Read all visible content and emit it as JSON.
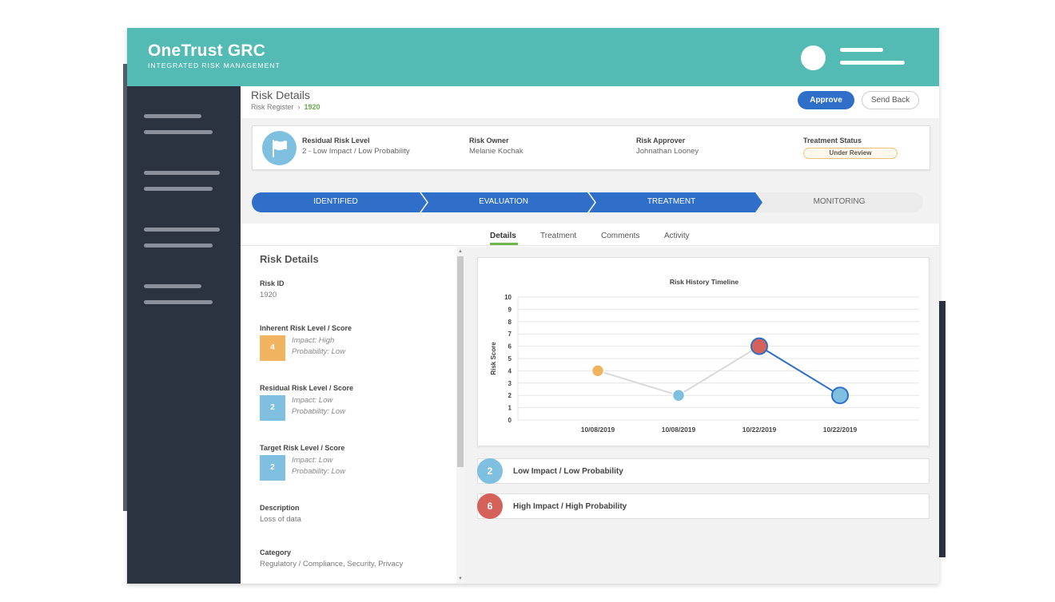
{
  "app": {
    "name": "OneTrust GRC",
    "subtitle": "INTEGRATED RISK MANAGEMENT"
  },
  "header": {
    "title": "Risk Details",
    "breadcrumb": {
      "parent": "Risk Register",
      "separator": "›",
      "current": "1920"
    },
    "approve_label": "Approve",
    "send_back_label": "Send Back"
  },
  "summary": {
    "residual_label": "Residual Risk Level",
    "residual_value": "2 - Low Impact / Low Probability",
    "owner_label": "Risk Owner",
    "owner_value": "Melanie Kochak",
    "approver_label": "Risk Approver",
    "approver_value": "Johnathan Looney",
    "status_label": "Treatment Status",
    "status_value": "Under Review"
  },
  "stages": [
    {
      "label": "IDENTIFIED",
      "state": "complete"
    },
    {
      "label": "EVALUATION",
      "state": "complete"
    },
    {
      "label": "TREATMENT",
      "state": "current"
    },
    {
      "label": "MONITORING",
      "state": "pending"
    }
  ],
  "tabs": [
    {
      "label": "Details",
      "active": true
    },
    {
      "label": "Treatment",
      "active": false
    },
    {
      "label": "Comments",
      "active": false
    },
    {
      "label": "Activity",
      "active": false
    }
  ],
  "details": {
    "title": "Risk Details",
    "risk_id_label": "Risk ID",
    "risk_id_value": "1920",
    "inherent_label": "Inherent Risk Level / Score",
    "inherent_score": "4",
    "inherent_impact": "Impact: High",
    "inherent_probability": "Probability: Low",
    "residual_label": "Residual Risk Level / Score",
    "residual_score": "2",
    "residual_impact": "Impact: Low",
    "residual_probability": "Probability: Low",
    "target_label": "Target Risk Level / Score",
    "target_score": "2",
    "target_impact": "Impact: Low",
    "target_probability": "Probability: Low",
    "description_label": "Description",
    "description_value": "Loss of data",
    "category_label": "Category",
    "category_value": "Regulatory / Compliance, Security, Privacy"
  },
  "colors": {
    "brand": "#54bbb4",
    "primary": "#2f6fca",
    "sidebar": "#2c3340",
    "inherent": "#f0b461",
    "low": "#7fbfe0",
    "high": "#d4625a",
    "tab_active": "#6fb64b"
  },
  "icons": {
    "residual": "flag-icon"
  },
  "chart_data": {
    "type": "line",
    "title": "Risk History Timeline",
    "ylabel": "Risk Score",
    "xlabel": "",
    "ylim": [
      0,
      10
    ],
    "yticks": [
      0,
      1,
      2,
      3,
      4,
      5,
      6,
      7,
      8,
      9,
      10
    ],
    "grid": true,
    "categories": [
      "10/08/2019",
      "10/08/2019",
      "10/22/2019",
      "10/22/2019"
    ],
    "series": [
      {
        "values": [
          4,
          2,
          6,
          2
        ],
        "point_colors": [
          "#f0b461",
          "#7fbfe0",
          "#d4625a",
          "#7fbfe0"
        ]
      }
    ]
  },
  "legend": [
    {
      "score": "2",
      "label": "Low Impact / Low Probability",
      "color": "#7fbfe0"
    },
    {
      "score": "6",
      "label": "High Impact / High Probability",
      "color": "#d4625a"
    }
  ]
}
